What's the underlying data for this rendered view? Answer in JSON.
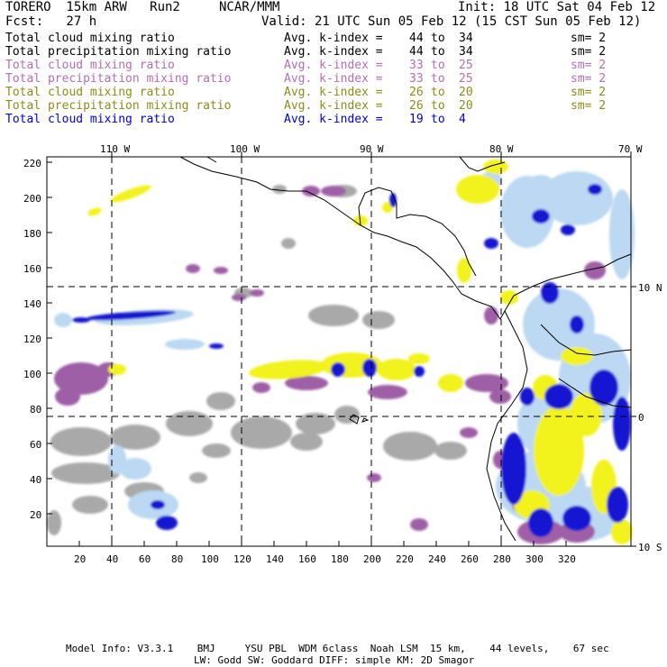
{
  "header": {
    "model": "TORERO  15km ARW   Run2",
    "org": "NCAR/MMM",
    "init": "Init: 18 UTC Sat 04 Feb 12",
    "fcst": "Fcst:   27 h",
    "valid": "Valid: 21 UTC Sun 05 Feb 12 (15 CST Sun 05 Feb 12)"
  },
  "legend": [
    {
      "field": "Total cloud mixing ratio",
      "kindex_label": "Avg. k-index =",
      "k_from": "44",
      "to": "to",
      "k_to": "34",
      "sm": "sm= 2",
      "color": "#000000"
    },
    {
      "field": "Total precipitation mixing ratio",
      "kindex_label": "Avg. k-index =",
      "k_from": "44",
      "to": "to",
      "k_to": "34",
      "sm": "sm= 2",
      "color": "#000000"
    },
    {
      "field": "Total cloud mixing ratio",
      "kindex_label": "Avg. k-index =",
      "k_from": "33",
      "to": "to",
      "k_to": "25",
      "sm": "sm= 2",
      "color": "#b36fb3"
    },
    {
      "field": "Total precipitation mixing ratio",
      "kindex_label": "Avg. k-index =",
      "k_from": "33",
      "to": "to",
      "k_to": "25",
      "sm": "sm= 2",
      "color": "#b36fb3"
    },
    {
      "field": "Total cloud mixing ratio",
      "kindex_label": "Avg. k-index =",
      "k_from": "26",
      "to": "to",
      "k_to": "20",
      "sm": "sm= 2",
      "color": "#8c8c1a"
    },
    {
      "field": "Total precipitation mixing ratio",
      "kindex_label": "Avg. k-index =",
      "k_from": "26",
      "to": "to",
      "k_to": "20",
      "sm": "sm= 2",
      "color": "#8c8c1a"
    },
    {
      "field": "Total cloud mixing ratio",
      "kindex_label": "Avg. k-index =",
      "k_from": "19",
      "to": "to",
      "k_to": "4",
      "sm": "",
      "color": "#0000dd"
    }
  ],
  "map": {
    "top_lon_labels": [
      "110 W",
      "100 W",
      "90 W",
      "80 W",
      "70 W"
    ],
    "right_lat_labels": [
      "10 N",
      "0",
      "10 S"
    ],
    "left_ticks": [
      "220",
      "200",
      "180",
      "160",
      "140",
      "120",
      "100",
      "80",
      "60",
      "40",
      "20"
    ],
    "bottom_ticks": [
      "20",
      "40",
      "60",
      "80",
      "100",
      "120",
      "140",
      "160",
      "180",
      "200",
      "220",
      "240",
      "260",
      "280",
      "300",
      "320"
    ],
    "colors": {
      "gray": "#a9a9a9",
      "purple": "#9e5fa6",
      "yellow": "#f2f21a",
      "blue": "#1414d2",
      "lightblue": "#bcd8f2"
    }
  },
  "footer": {
    "line1": "Model Info: V3.3.1    BMJ     YSU PBL  WDM 6class  Noah LSM  15 km,    44 levels,    67 sec",
    "line2": "LW: Godd SW: Goddard DIFF: simple KM: 2D Smagor"
  }
}
